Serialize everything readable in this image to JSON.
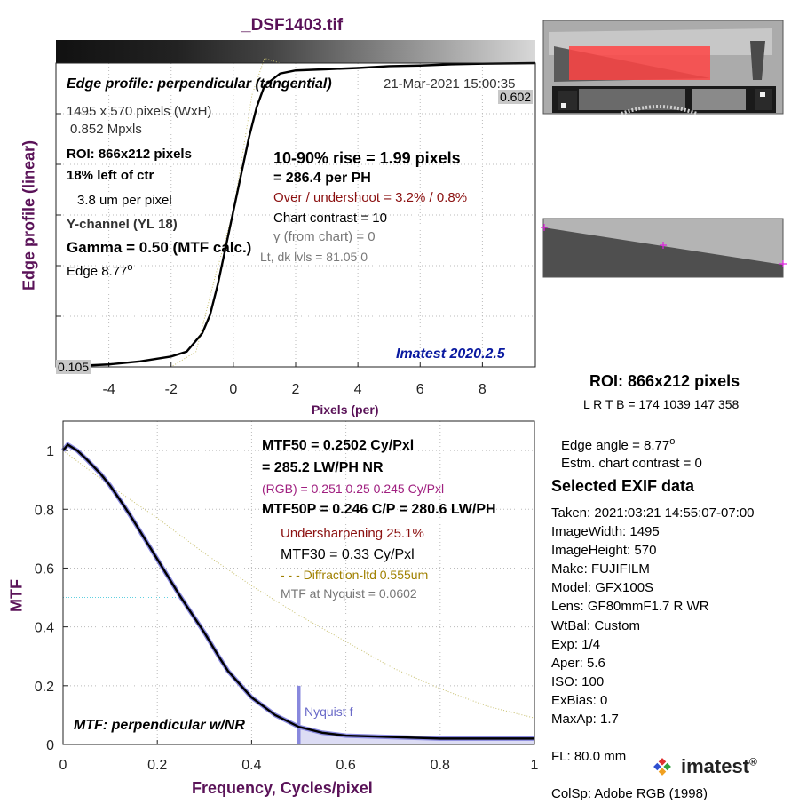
{
  "title": "_DSF1403.tif",
  "chart_data": [
    {
      "type": "line",
      "title": "Edge profile: perpendicular (tangential)",
      "xlabel": "Pixels (per)",
      "ylabel": "Edge profile (linear)",
      "xlim": [
        -5.7,
        9.7
      ],
      "ylim": [
        0.105,
        0.602
      ],
      "xticks": [
        -4,
        -2,
        0,
        2,
        4,
        6,
        8
      ],
      "grid": true,
      "ytick_markers": [
        "0.602",
        "0.105"
      ],
      "series": [
        {
          "values": [
            [
              -5.7,
              0.105
            ],
            [
              -4,
              0.109
            ],
            [
              -3,
              0.114
            ],
            [
              -2,
              0.122
            ],
            [
              -1.5,
              0.13
            ],
            [
              -1,
              0.16
            ],
            [
              -0.75,
              0.19
            ],
            [
              -0.5,
              0.24
            ],
            [
              -0.25,
              0.3
            ],
            [
              0,
              0.36
            ],
            [
              0.25,
              0.42
            ],
            [
              0.5,
              0.48
            ],
            [
              0.75,
              0.53
            ],
            [
              1,
              0.565
            ],
            [
              1.5,
              0.585
            ],
            [
              2,
              0.59
            ],
            [
              3,
              0.592
            ],
            [
              4,
              0.594
            ],
            [
              5,
              0.597
            ],
            [
              6,
              0.598
            ],
            [
              7,
              0.6
            ],
            [
              8,
              0.601
            ],
            [
              9.7,
              0.602
            ]
          ]
        }
      ]
    },
    {
      "type": "line",
      "title": "MTF: perpendicular w/NR",
      "xlabel": "Frequency, Cycles/pixel",
      "ylabel": "MTF",
      "xlim": [
        0,
        1
      ],
      "ylim": [
        0,
        1.1
      ],
      "xticks": [
        0,
        0.2,
        0.4,
        0.6,
        0.8,
        1
      ],
      "yticks": [
        0,
        0.2,
        0.4,
        0.6,
        0.8,
        1
      ],
      "grid": true,
      "nyquist_x": 0.5,
      "series": [
        {
          "values": [
            [
              0,
              1.0
            ],
            [
              0.01,
              1.02
            ],
            [
              0.03,
              1.0
            ],
            [
              0.05,
              0.97
            ],
            [
              0.08,
              0.92
            ],
            [
              0.1,
              0.88
            ],
            [
              0.13,
              0.81
            ],
            [
              0.15,
              0.76
            ],
            [
              0.2,
              0.63
            ],
            [
              0.25,
              0.5
            ],
            [
              0.2502,
              0.5
            ],
            [
              0.3,
              0.38
            ],
            [
              0.33,
              0.3
            ],
            [
              0.35,
              0.25
            ],
            [
              0.4,
              0.16
            ],
            [
              0.45,
              0.1
            ],
            [
              0.5,
              0.06
            ],
            [
              0.55,
              0.04
            ],
            [
              0.6,
              0.03
            ],
            [
              0.7,
              0.025
            ],
            [
              0.8,
              0.02
            ],
            [
              0.9,
              0.02
            ],
            [
              1.0,
              0.02
            ]
          ]
        },
        {
          "values": [
            [
              0,
              1.0
            ],
            [
              0.1,
              0.88
            ],
            [
              0.2,
              0.77
            ],
            [
              0.3,
              0.65
            ],
            [
              0.4,
              0.54
            ],
            [
              0.5,
              0.44
            ],
            [
              0.6,
              0.35
            ],
            [
              0.7,
              0.26
            ],
            [
              0.8,
              0.19
            ],
            [
              0.9,
              0.13
            ],
            [
              1.0,
              0.09
            ]
          ]
        }
      ]
    }
  ],
  "edge_panel": {
    "subtitle": "Edge profile: perpendicular (tangential)",
    "datetime": "21-Mar-2021 15:00:35",
    "dims": "1495 x 570 pixels (WxH)",
    "mpxls": "0.852 Mpxls",
    "roi": "ROI:  866x212 pixels",
    "left": "18% left of ctr",
    "um": "3.8 um per pixel",
    "channel": "Y-channel  (YL 18)",
    "gamma": "Gamma = 0.50 (MTF calc.)",
    "edge": "Edge   8.77",
    "edge_sup": "o",
    "rise": "10-90% rise = 1.99 pixels",
    "per_ph": "=  286.4 per PH",
    "overshoot": "Over / undershoot =  3.2% /  0.8%",
    "contrast": "Chart contrast = 10",
    "gamma_chart": "γ (from chart) =     0",
    "lt_dk": "Lt, dk lvls = 81.05  0",
    "version": "Imatest 2020.2.5",
    "top_val": "0.602",
    "bot_val": "0.105"
  },
  "mtf_panel": {
    "mtf50": "MTF50 = 0.2502 Cy/Pxl",
    "lwph": "= 285.2 LW/PH  NR",
    "rgb": "(RGB) = 0.251  0.25  0.245 Cy/Pxl",
    "mtf50p": "MTF50P = 0.246 C/P = 280.6 LW/PH",
    "undersharp": "Undersharpening 25.1%",
    "mtf30": "MTF30 = 0.33 Cy/Pxl",
    "diffraction": "- - - Diffraction-ltd  0.555um",
    "nyquist_mtf": "MTF at Nyquist = 0.0602",
    "nyquist_label": "Nyquist f",
    "caption": "MTF: perpendicular w/NR"
  },
  "side": {
    "roi": "ROI:  866x212 pixels",
    "lrtb": "L R  T B = 174  1039  147  358",
    "edge_angle": "Edge angle = 8.77",
    "edge_angle_sup": "o",
    "contrast": "Estm. chart contrast = 0",
    "exif_title": "Selected EXIF data",
    "exif": [
      "Taken: 2021:03:21 14:55:07-07:00",
      "ImageWidth:  1495",
      "ImageHeight:  570",
      "Make:  FUJIFILM",
      "Model:  GFX100S",
      "Lens:   GF80mmF1.7 R WR",
      "WtBal:  Custom",
      "Exp:    1/4",
      "Aper:   5.6",
      "ISO:    100",
      "ExBias:  0",
      "MaxAp:  1.7",
      "",
      "FL:     80.0 mm",
      "",
      "ColSp:  Adobe RGB (1998)"
    ],
    "logo": "imatest",
    "logo_reg": "®"
  },
  "colors": {
    "accent": "#5a1258",
    "curve": "#000000",
    "red_overlay": "#ff3333",
    "nyquist_fill": "#8888dd",
    "diffraction": "#c8c070",
    "imatest_blue": "#0a1aa0"
  }
}
